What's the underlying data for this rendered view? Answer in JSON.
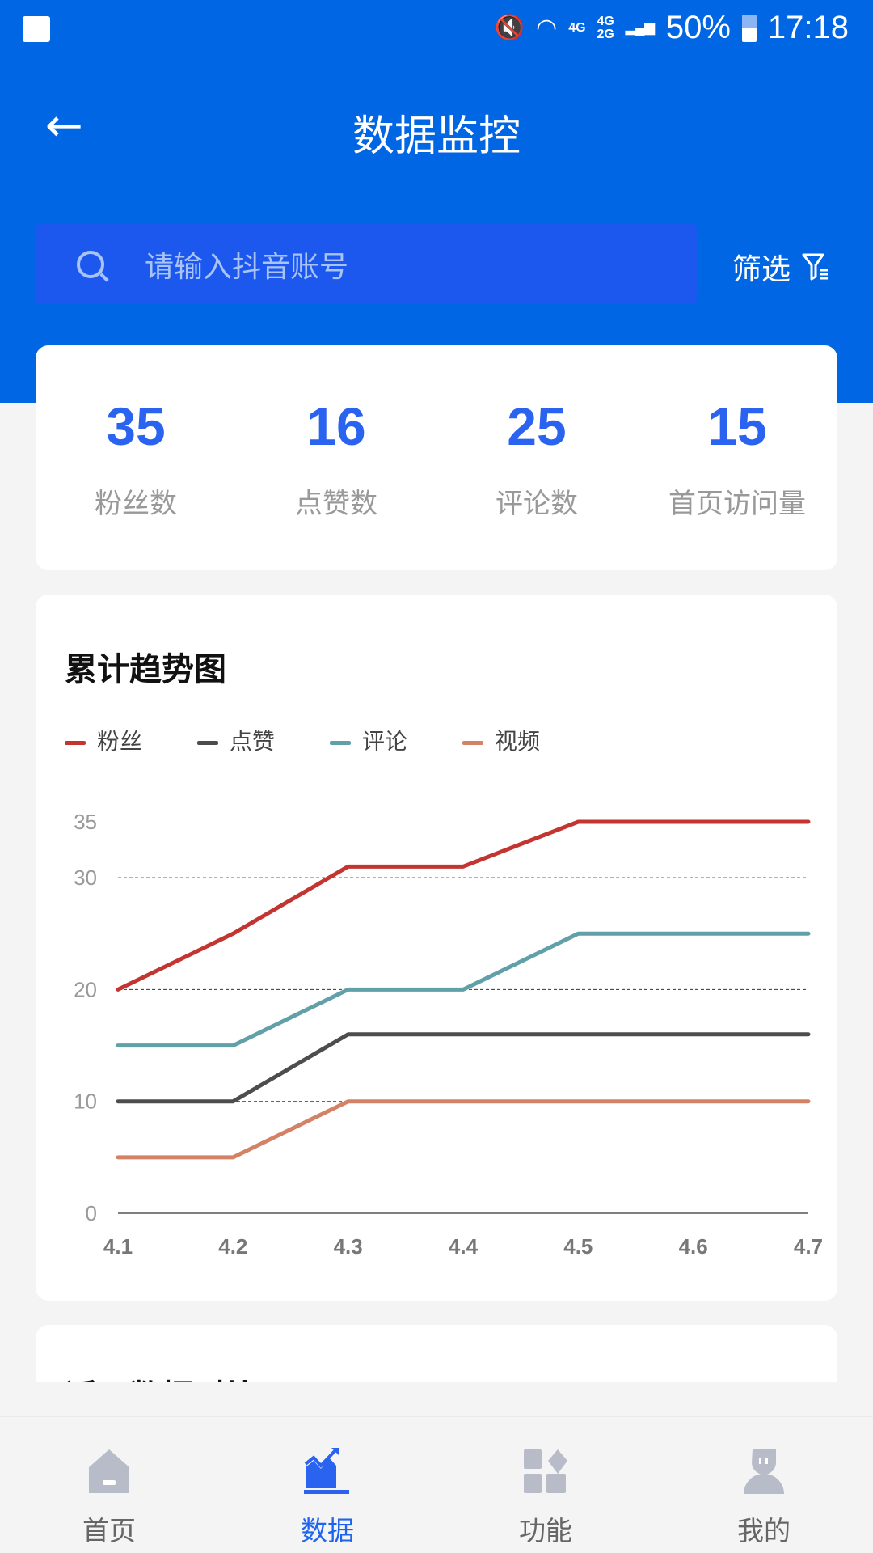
{
  "status_bar": {
    "network_1": "4G",
    "network_2a": "4G",
    "network_2b": "2G",
    "battery": "50%",
    "time": "17:18"
  },
  "header": {
    "title": "数据监控",
    "search_placeholder": "请输入抖音账号",
    "filter_label": "筛选"
  },
  "stats": [
    {
      "value": "35",
      "label": "粉丝数"
    },
    {
      "value": "16",
      "label": "点赞数"
    },
    {
      "value": "25",
      "label": "评论数"
    },
    {
      "value": "15",
      "label": "首页访问量"
    }
  ],
  "chart_card": {
    "title": "累计趋势图"
  },
  "chart_data": {
    "type": "line",
    "title": "累计趋势图",
    "categories": [
      "4.1",
      "4.2",
      "4.3",
      "4.4",
      "4.5",
      "4.6",
      "4.7"
    ],
    "y_ticks": [
      "0",
      "10",
      "20",
      "30",
      "35"
    ],
    "ylim": [
      0,
      35
    ],
    "grid": "dashed at 10, 20, 30",
    "legend_position": "top-left",
    "series": [
      {
        "name": "粉丝",
        "color": "#c23531",
        "values": [
          20,
          25,
          31,
          31,
          35,
          35,
          35
        ]
      },
      {
        "name": "点赞",
        "color": "#4d4d4d",
        "values": [
          10,
          10,
          16,
          16,
          16,
          16,
          16
        ]
      },
      {
        "name": "评论",
        "color": "#61a0a8",
        "values": [
          15,
          15,
          20,
          20,
          25,
          25,
          25
        ]
      },
      {
        "name": "视频",
        "color": "#d48265",
        "values": [
          5,
          5,
          10,
          10,
          10,
          10,
          10
        ]
      }
    ]
  },
  "next_card": {
    "title": "近日数据对比"
  },
  "nav": [
    {
      "label": "首页",
      "icon": "home-icon"
    },
    {
      "label": "数据",
      "icon": "chart-icon",
      "active": true
    },
    {
      "label": "功能",
      "icon": "apps-icon"
    },
    {
      "label": "我的",
      "icon": "user-icon"
    }
  ],
  "colors": {
    "primary": "#0066e4",
    "accent": "#2a63f0",
    "background": "#f4f4f4"
  }
}
